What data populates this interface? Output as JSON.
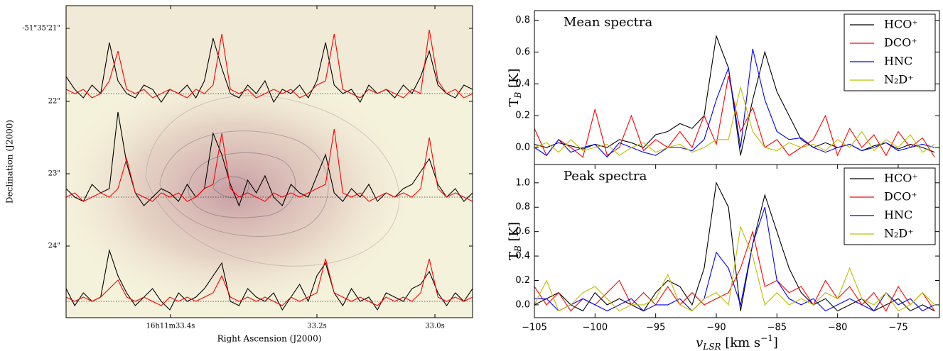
{
  "chart_data": [
    {
      "type": "spectral_map",
      "xlabel": "Right Ascension (J2000)",
      "ylabel": "Declination (J2000)",
      "xtick_labels": [
        "16h11m33.4s",
        "33.2s",
        "33.0s"
      ],
      "ytick_labels": [
        "-51°35'21\"",
        "22\"",
        "23\"",
        "24\""
      ],
      "rows": [
        {
          "series": [
            {
              "color": "#000000",
              "values": [
                0.4,
                0.1,
                -0.1,
                0.2,
                0.0,
                1.2,
                0.3,
                0.0,
                -0.1,
                0.2,
                0.1,
                -0.2,
                0.1,
                0.0,
                0.2,
                -0.1,
                0.3,
                1.3,
                0.6,
                0.0,
                -0.1,
                0.2,
                0.0,
                0.3,
                -0.2,
                0.1,
                0.0,
                0.2,
                -0.1,
                0.3,
                1.2,
                0.2,
                0.0,
                0.1,
                -0.2,
                0.2,
                0.0,
                0.1,
                -0.1,
                0.2,
                0.0,
                0.4,
                1.0,
                0.2,
                0.0,
                -0.1,
                0.2,
                0.1
              ]
            },
            {
              "color": "#ff0000",
              "values": [
                0.1,
                0.0,
                0.1,
                -0.1,
                0.0,
                0.3,
                1.0,
                0.1,
                0.0,
                0.1,
                -0.1,
                0.0,
                0.1,
                0.0,
                -0.1,
                0.1,
                0.0,
                0.2,
                1.4,
                0.1,
                0.0,
                0.1,
                -0.1,
                0.0,
                0.1,
                0.0,
                0.1,
                -0.1,
                0.0,
                0.2,
                0.3,
                1.4,
                0.1,
                0.0,
                -0.1,
                0.1,
                0.0,
                0.1,
                0.0,
                -0.1,
                0.1,
                0.0,
                1.5,
                0.3,
                0.0,
                0.1,
                -0.1,
                0.0
              ]
            }
          ]
        },
        {
          "series": [
            {
              "color": "#000000",
              "values": [
                0.2,
                0.0,
                -0.1,
                0.3,
                0.1,
                0.2,
                2.0,
                0.8,
                0.1,
                -0.2,
                0.0,
                0.2,
                0.1,
                -0.1,
                0.3,
                0.0,
                0.2,
                1.5,
                1.0,
                0.3,
                -0.2,
                0.4,
                0.1,
                0.5,
                0.0,
                -0.2,
                0.3,
                0.1,
                0.0,
                0.5,
                1.0,
                0.1,
                -0.1,
                0.2,
                0.0,
                0.3,
                -0.1,
                0.1,
                0.0,
                0.2,
                0.3,
                0.6,
                0.9,
                0.3,
                0.0,
                0.2,
                -0.1,
                0.1
              ]
            },
            {
              "color": "#ff0000",
              "values": [
                0.0,
                0.1,
                -0.1,
                0.0,
                0.1,
                0.0,
                0.2,
                0.9,
                0.1,
                0.0,
                -0.1,
                0.1,
                0.0,
                0.1,
                -0.1,
                0.0,
                0.2,
                0.3,
                1.5,
                0.2,
                0.0,
                0.1,
                0.0,
                -0.1,
                0.1,
                0.0,
                0.1,
                0.0,
                0.1,
                0.2,
                0.3,
                1.6,
                0.1,
                0.0,
                0.1,
                -0.1,
                0.0,
                0.1,
                0.0,
                0.1,
                0.0,
                0.2,
                1.4,
                0.2,
                0.0,
                0.1,
                0.0,
                -0.1
              ]
            }
          ]
        },
        {
          "series": [
            {
              "color": "#000000",
              "values": [
                0.3,
                -0.1,
                0.2,
                0.0,
                0.1,
                1.2,
                0.6,
                0.2,
                -0.1,
                0.1,
                0.3,
                0.0,
                -0.2,
                0.2,
                0.0,
                0.1,
                0.3,
                0.6,
                0.9,
                0.0,
                -0.1,
                0.3,
                0.1,
                0.0,
                0.2,
                -0.2,
                0.1,
                0.4,
                0.0,
                0.6,
                0.9,
                0.2,
                -0.1,
                0.3,
                0.0,
                0.1,
                -0.2,
                0.2,
                0.1,
                0.0,
                0.3,
                0.4,
                0.7,
                0.2,
                -0.1,
                0.2,
                0.0,
                0.3
              ]
            },
            {
              "color": "#ff0000",
              "values": [
                0.1,
                0.0,
                0.1,
                0.0,
                0.1,
                0.3,
                0.5,
                0.1,
                0.0,
                0.1,
                0.0,
                -0.1,
                0.1,
                0.0,
                0.1,
                0.0,
                0.1,
                0.2,
                0.6,
                0.1,
                0.0,
                0.1,
                0.0,
                0.1,
                0.0,
                -0.1,
                0.1,
                0.0,
                0.1,
                0.2,
                1.0,
                0.2,
                0.1,
                0.0,
                0.1,
                0.0,
                -0.1,
                0.1,
                0.0,
                0.1,
                0.0,
                0.2,
                1.0,
                0.1,
                0.0,
                0.1,
                0.0,
                0.1
              ]
            }
          ]
        }
      ]
    },
    {
      "type": "line",
      "title": "Mean spectra",
      "ylabel": [
        "T",
        "B",
        " [K]"
      ],
      "xlim": [
        -105,
        -71.6
      ],
      "ylim": [
        -0.107,
        0.86
      ],
      "yticks": [
        {
          "value": 0,
          "label": "0.0"
        },
        {
          "value": 0.2,
          "label": "0.2"
        },
        {
          "value": 0.4,
          "label": "0.4"
        },
        {
          "value": 0.6,
          "label": "0.6"
        },
        {
          "value": 0.8,
          "label": "0.8"
        }
      ],
      "x": [
        -105,
        -104,
        -103,
        -102,
        -101,
        -100,
        -99,
        -98,
        -97,
        -96,
        -95,
        -94,
        -93,
        -92,
        -91,
        -90,
        -89,
        -88,
        -87,
        -86,
        -85,
        -84,
        -83,
        -82,
        -81,
        -80,
        -79,
        -78,
        -77,
        -76,
        -75,
        -74,
        -73,
        -72
      ],
      "legend": "upper right",
      "series": [
        {
          "name": "HCO⁺",
          "color": "#000000",
          "values": [
            0.02,
            0.0,
            0.03,
            0.01,
            -0.01,
            0.02,
            0.0,
            0.05,
            0.03,
            0.0,
            0.08,
            0.1,
            0.15,
            0.12,
            0.2,
            0.7,
            0.5,
            -0.05,
            0.3,
            0.6,
            0.35,
            0.2,
            0.05,
            0.0,
            0.03,
            0.0,
            0.02,
            -0.02,
            0.01,
            0.03,
            -0.01,
            0.02,
            0.0,
            -0.03
          ]
        },
        {
          "name": "DCO⁺",
          "color": "#ff0000",
          "values": [
            0.12,
            -0.05,
            0.05,
            0.0,
            -0.06,
            0.24,
            -0.05,
            0.0,
            0.2,
            -0.02,
            0.05,
            0.0,
            0.1,
            0.0,
            0.2,
            0.02,
            0.45,
            0.1,
            0.25,
            0.0,
            0.05,
            -0.05,
            0.0,
            0.05,
            0.2,
            -0.05,
            0.12,
            0.0,
            0.08,
            -0.05,
            0.1,
            0.0,
            0.06,
            -0.06
          ]
        },
        {
          "name": "HNC",
          "color": "#0000ff",
          "values": [
            0.0,
            -0.05,
            0.05,
            -0.03,
            0.0,
            0.02,
            -0.06,
            0.03,
            0.0,
            -0.03,
            -0.05,
            0.0,
            0.0,
            -0.02,
            0.05,
            0.3,
            0.5,
            0.0,
            0.62,
            0.3,
            0.1,
            0.05,
            0.06,
            0.0,
            -0.03,
            0.0,
            0.02,
            -0.02,
            0.0,
            0.03,
            -0.02,
            0.0,
            0.02,
            0.0
          ]
        },
        {
          "name": "N₂D⁺",
          "color": "#bfbf00",
          "values": [
            0.0,
            0.03,
            -0.03,
            0.05,
            -0.02,
            0.0,
            0.02,
            -0.05,
            0.0,
            0.03,
            -0.03,
            0.0,
            0.02,
            -0.03,
            0.0,
            0.05,
            0.05,
            0.38,
            0.1,
            0.0,
            -0.02,
            0.03,
            0.0,
            0.02,
            -0.02,
            0.05,
            0.0,
            0.1,
            -0.02,
            0.05,
            0.0,
            0.08,
            -0.03,
            0.02
          ]
        }
      ]
    },
    {
      "type": "line",
      "title": "Peak spectra",
      "ylabel": [
        "T",
        "B",
        " [K]"
      ],
      "xlabel": [
        "v",
        "LSR",
        " [km s",
        "−1",
        "]"
      ],
      "xlim": [
        -105,
        -71.6
      ],
      "ylim": [
        -0.105,
        1.15
      ],
      "xticks": [
        {
          "value": -105,
          "label": "−105"
        },
        {
          "value": -100,
          "label": "−100"
        },
        {
          "value": -95,
          "label": "−95"
        },
        {
          "value": -90,
          "label": "−90"
        },
        {
          "value": -85,
          "label": "−85"
        },
        {
          "value": -80,
          "label": "−80"
        },
        {
          "value": -75,
          "label": "−75"
        }
      ],
      "yticks": [
        {
          "value": 0,
          "label": "0.0"
        },
        {
          "value": 0.2,
          "label": "0.2"
        },
        {
          "value": 0.4,
          "label": "0.4"
        },
        {
          "value": 0.6,
          "label": "0.6"
        },
        {
          "value": 0.8,
          "label": "0.8"
        },
        {
          "value": 1,
          "label": "1.0"
        }
      ],
      "x": [
        -105,
        -104,
        -103,
        -102,
        -101,
        -100,
        -99,
        -98,
        -97,
        -96,
        -95,
        -94,
        -93,
        -92,
        -91,
        -90,
        -89,
        -88,
        -87,
        -86,
        -85,
        -84,
        -83,
        -82,
        -81,
        -80,
        -79,
        -78,
        -77,
        -76,
        -75,
        -74,
        -73,
        -72
      ],
      "legend": "upper right",
      "series": [
        {
          "name": "HCO⁺",
          "color": "#000000",
          "values": [
            0.0,
            0.05,
            0.1,
            0.0,
            -0.05,
            0.1,
            0.0,
            0.05,
            0.0,
            -0.05,
            0.1,
            0.2,
            0.15,
            0.0,
            0.3,
            1.0,
            0.8,
            -0.05,
            0.5,
            0.9,
            0.6,
            0.3,
            0.1,
            0.0,
            0.05,
            -0.05,
            0.0,
            0.05,
            -0.05,
            0.0,
            0.05,
            -0.05,
            0.0,
            -0.05
          ]
        },
        {
          "name": "DCO⁺",
          "color": "#ff0000",
          "values": [
            0.15,
            0.0,
            0.1,
            -0.05,
            0.05,
            0.0,
            0.1,
            0.2,
            0.0,
            0.1,
            0.0,
            0.15,
            0.0,
            0.1,
            0.0,
            0.05,
            0.1,
            0.3,
            0.6,
            0.15,
            0.2,
            0.1,
            0.15,
            0.0,
            0.2,
            0.05,
            0.15,
            0.0,
            0.1,
            -0.05,
            0.15,
            0.0,
            0.1,
            -0.05
          ]
        },
        {
          "name": "HNC",
          "color": "#0000ff",
          "values": [
            0.05,
            0.05,
            -0.05,
            0.0,
            0.05,
            0.0,
            -0.05,
            0.0,
            0.05,
            -0.05,
            0.0,
            0.0,
            0.05,
            -0.05,
            0.05,
            0.43,
            0.3,
            0.0,
            0.5,
            0.8,
            0.2,
            0.05,
            0.0,
            0.05,
            -0.05,
            0.0,
            0.05,
            0.0,
            -0.05,
            0.1,
            0.0,
            0.05,
            -0.05,
            0.0
          ]
        },
        {
          "name": "N₂D⁺",
          "color": "#bfbf00",
          "values": [
            0.0,
            0.2,
            -0.05,
            0.0,
            0.1,
            0.15,
            0.05,
            -0.05,
            0.0,
            0.0,
            0.05,
            0.25,
            0.0,
            -0.05,
            0.05,
            0.1,
            0.0,
            0.64,
            0.4,
            0.0,
            0.1,
            0.0,
            0.05,
            0.0,
            0.1,
            0.05,
            0.3,
            0.05,
            0.0,
            0.1,
            -0.05,
            0.0,
            0.1,
            0.0
          ]
        }
      ]
    }
  ]
}
